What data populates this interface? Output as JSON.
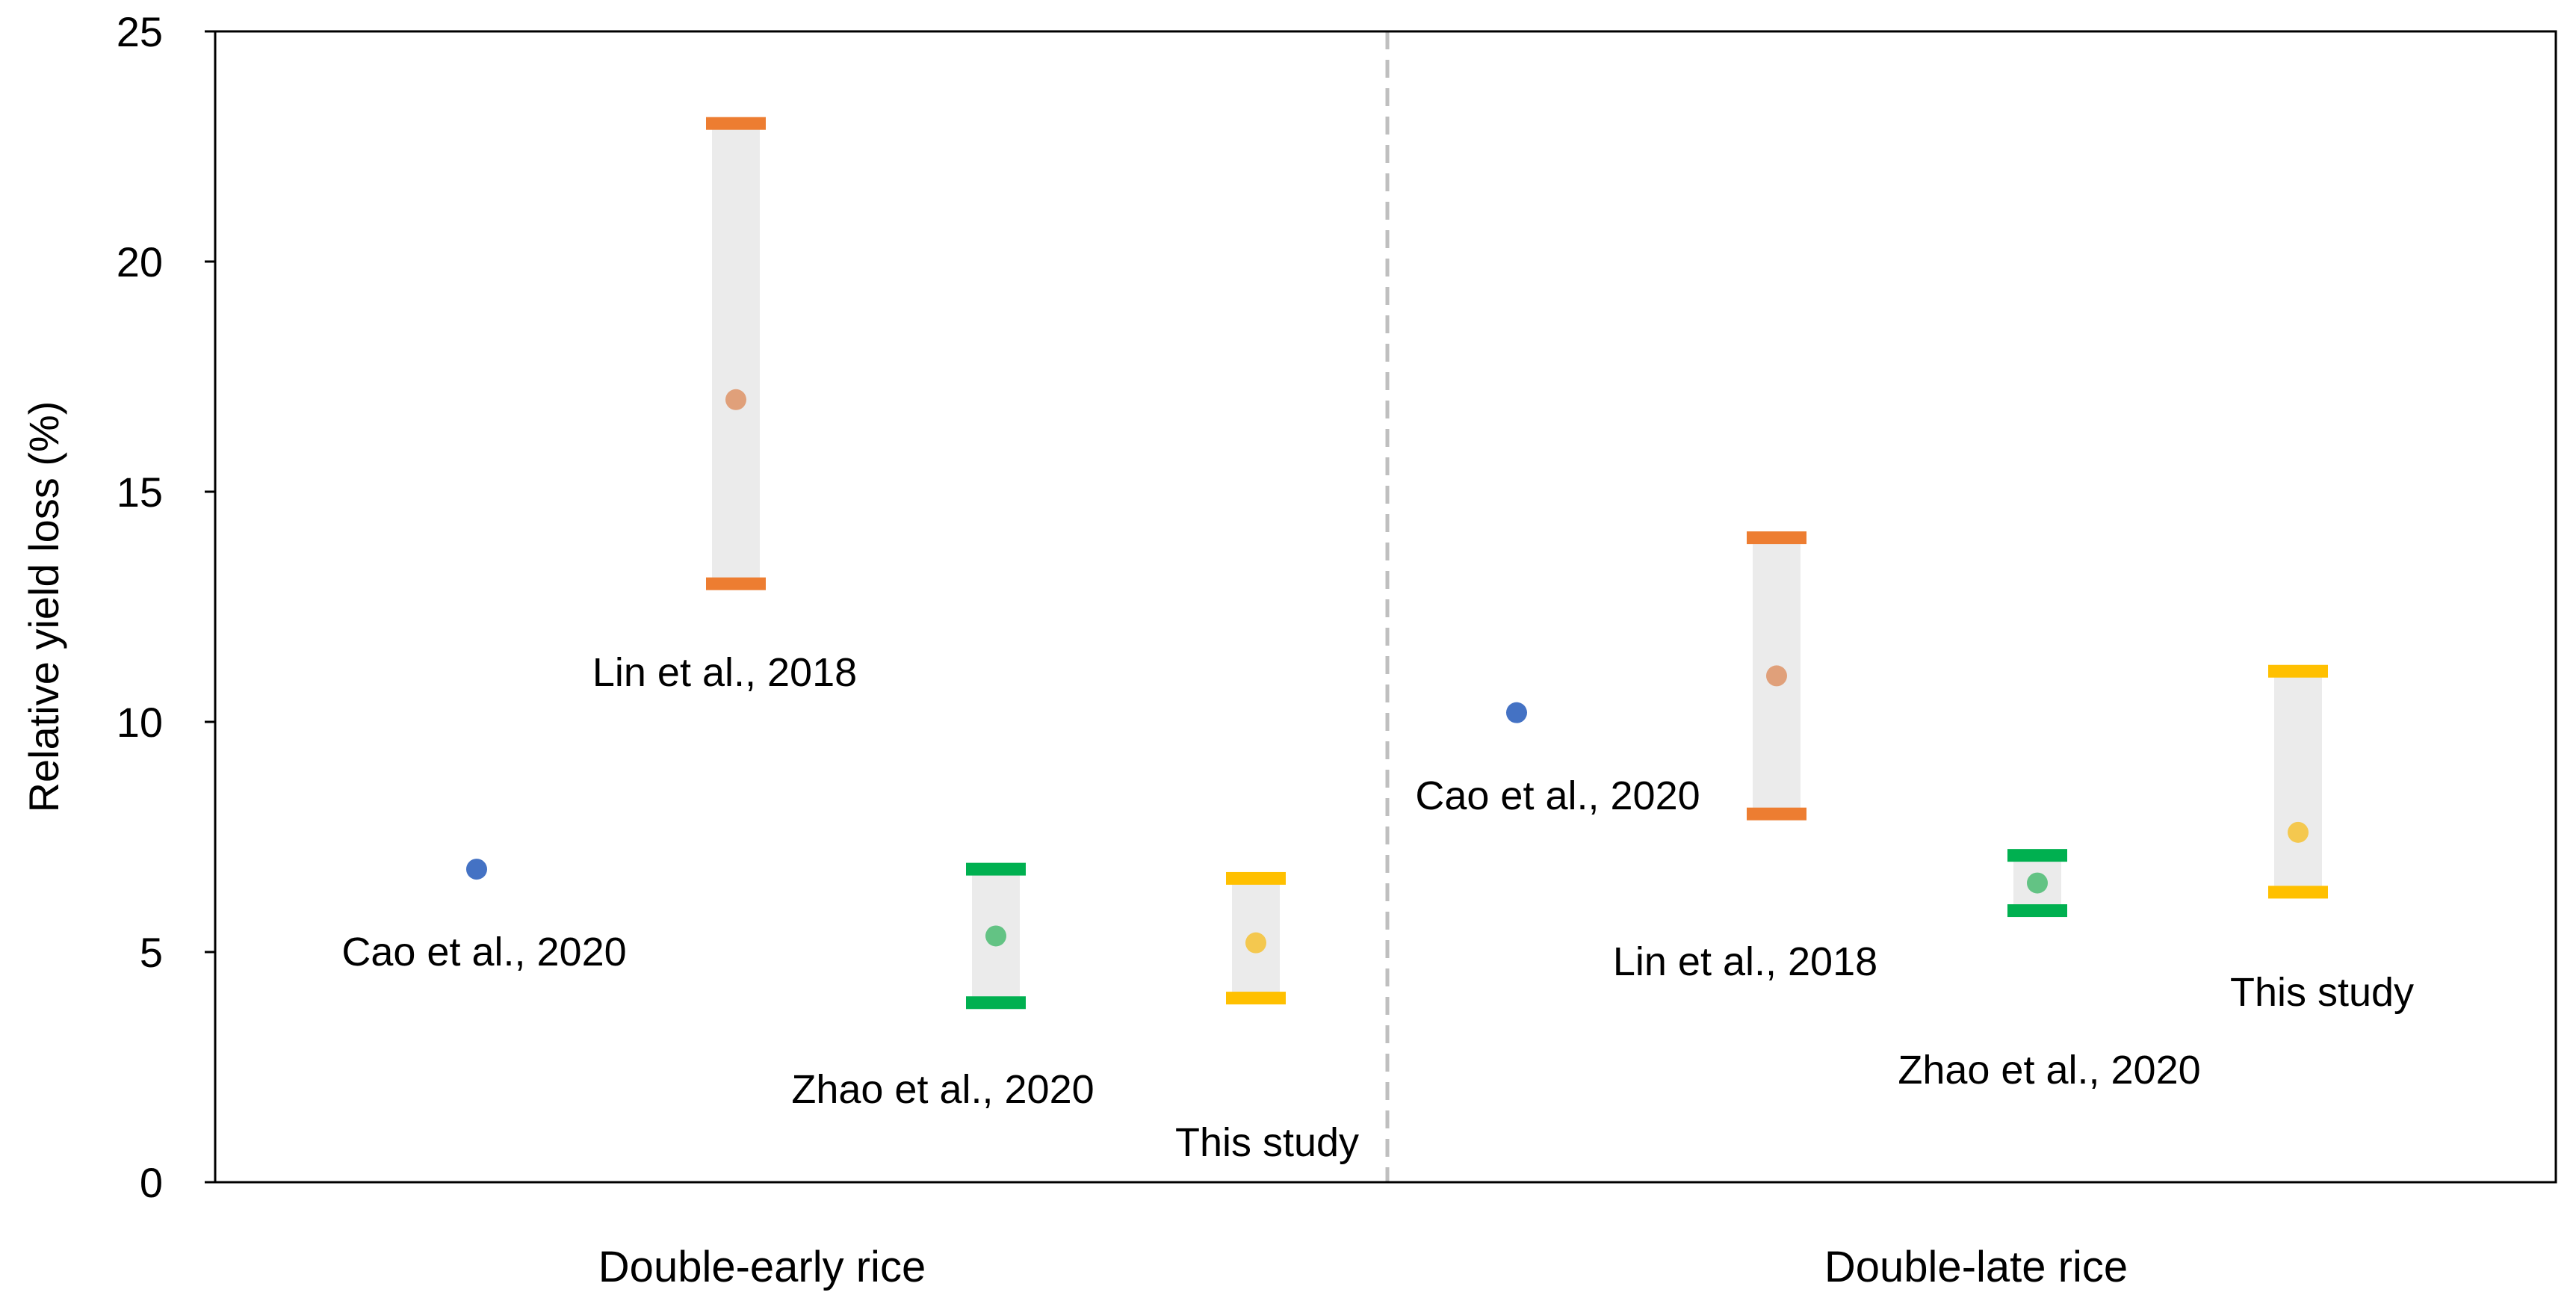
{
  "chart_data": {
    "type": "scatter",
    "title": "",
    "ylabel": "Relative yield loss (%)",
    "xlabel": "",
    "ylim": [
      0,
      25
    ],
    "yticks": [
      0,
      5,
      10,
      15,
      20,
      25
    ],
    "grid": false,
    "legend": "none",
    "groups": [
      {
        "name": "Double-early rice",
        "points": [
          {
            "study": "Cao et al., 2020",
            "value": 6.8,
            "low": null,
            "high": null,
            "color": "#4472C4",
            "cap_color": null
          },
          {
            "study": "Lin et al., 2018",
            "value": 17.0,
            "low": 13.0,
            "high": 23.0,
            "color": "#E0A07A",
            "cap_color": "#ED7D31"
          },
          {
            "study": "Zhao et al., 2020",
            "value": 5.35,
            "low": 3.9,
            "high": 6.8,
            "color": "#63C384",
            "cap_color": "#00B050"
          },
          {
            "study": "This study",
            "value": 5.2,
            "low": 4.0,
            "high": 6.6,
            "color": "#F4C84F",
            "cap_color": "#FFC000"
          }
        ]
      },
      {
        "name": "Double-late rice",
        "points": [
          {
            "study": "Cao et al., 2020",
            "value": 10.2,
            "low": null,
            "high": null,
            "color": "#4472C4",
            "cap_color": null
          },
          {
            "study": "Lin et al., 2018",
            "value": 11.0,
            "low": 8.0,
            "high": 14.0,
            "color": "#E0A07A",
            "cap_color": "#ED7D31"
          },
          {
            "study": "Zhao et al., 2020",
            "value": 6.5,
            "low": 5.9,
            "high": 7.1,
            "color": "#63C384",
            "cap_color": "#00B050"
          },
          {
            "study": "This study",
            "value": 7.6,
            "low": 6.3,
            "high": 11.1,
            "color": "#F4C84F",
            "cap_color": "#FFC000"
          }
        ]
      }
    ],
    "colors": {
      "axis": "#000000",
      "divider": "#BFBFBF",
      "range_fill": "#EBEBEB"
    }
  }
}
